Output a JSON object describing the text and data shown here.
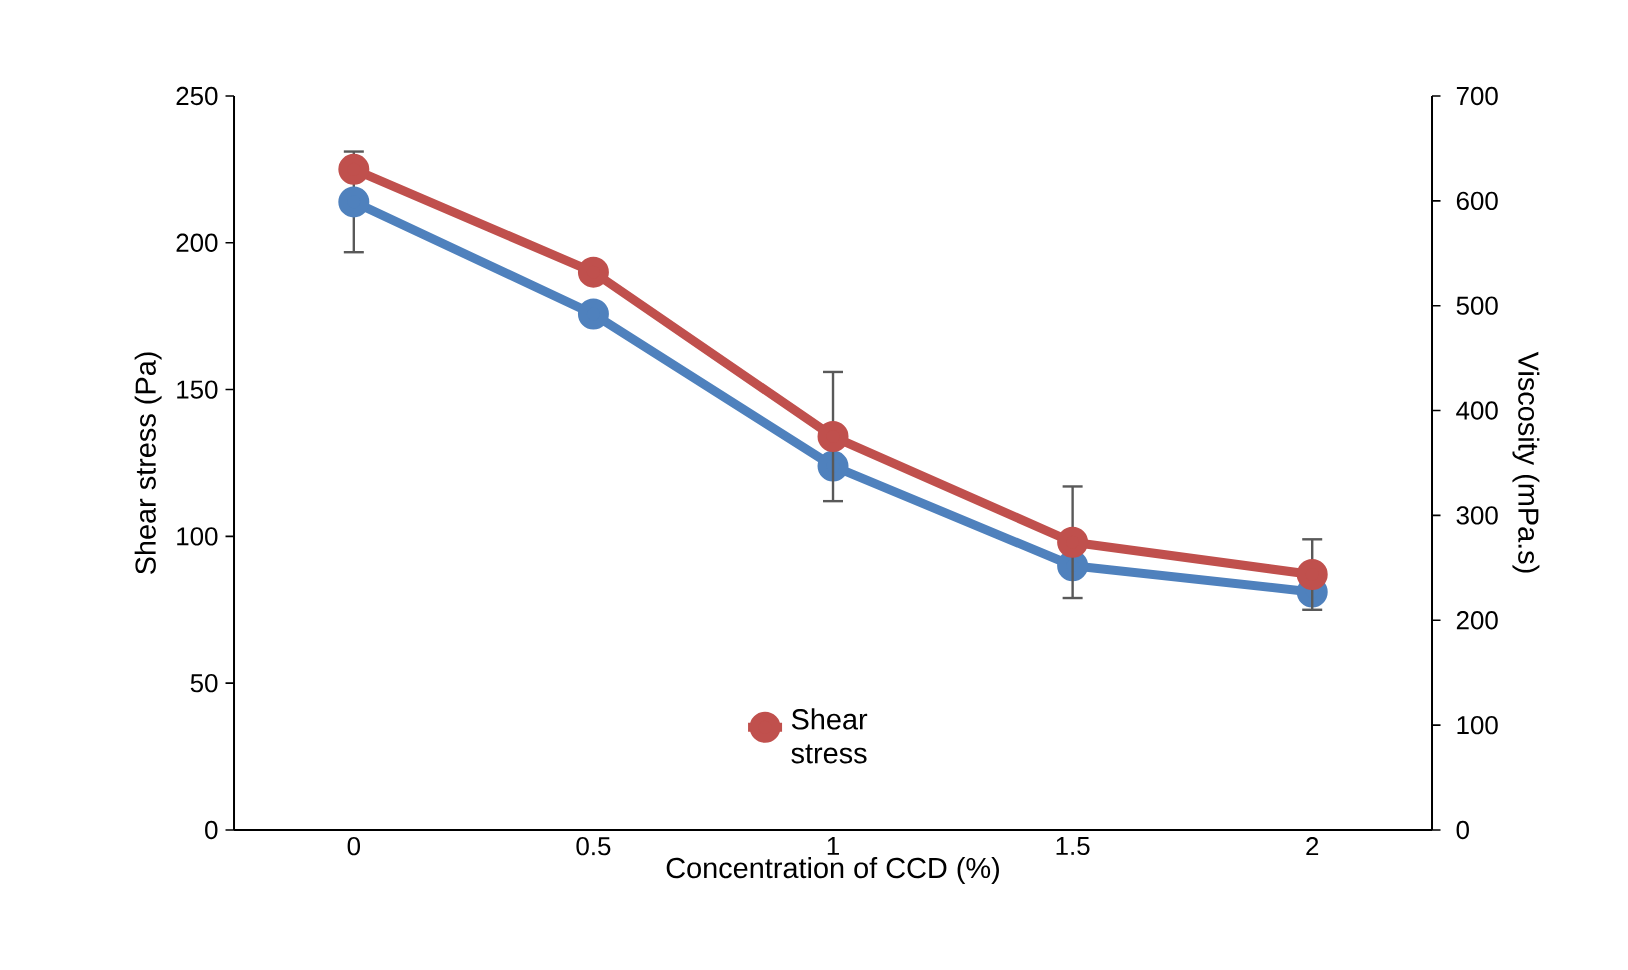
{
  "chart_data": {
    "type": "line",
    "xlabel": "Concentration of CCD (%)",
    "ylabel": "Shear stress (Pa)",
    "y2label": "Viscosity (mPa.s)",
    "categories": [
      "0",
      "0.5",
      "1",
      "1.5",
      "2"
    ],
    "series": [
      {
        "color": "#4f81bd",
        "axis": "y2",
        "values": [
          599,
          492,
          347,
          252,
          227
        ],
        "errors": [
          48,
          null,
          null,
          null,
          null
        ]
      },
      {
        "name": "Shear stress",
        "color": "#c0504d",
        "values": [
          225,
          190,
          134,
          98,
          87
        ],
        "errors": [
          null,
          null,
          22,
          19,
          12
        ]
      }
    ],
    "ylim": [
      0,
      250
    ],
    "yticks": [
      0,
      50,
      100,
      150,
      200,
      250
    ],
    "y2lim": [
      0,
      700
    ],
    "y2ticks": [
      0,
      100,
      200,
      300,
      400,
      500,
      600,
      700
    ],
    "marker": "circle",
    "line_style": "solid",
    "grid": false,
    "legend": "bottom"
  }
}
